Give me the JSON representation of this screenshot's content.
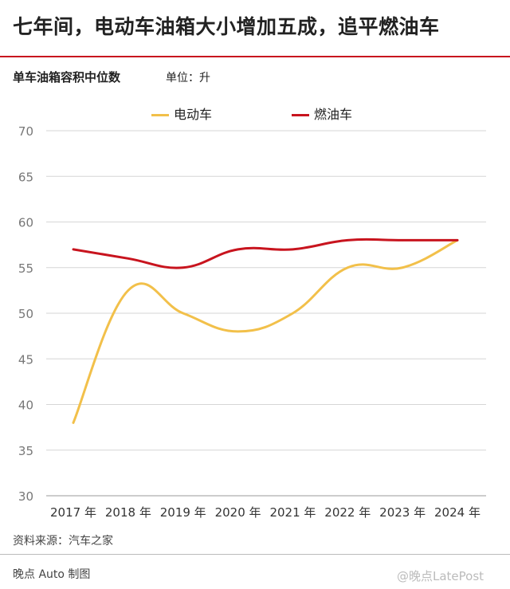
{
  "header": {
    "title": "七年间，电动车油箱大小增加五成，追平燃油车",
    "subtitle": "单车油箱容积中位数",
    "unit": "单位：升"
  },
  "footer": {
    "source": "资料来源：汽车之家",
    "credit": "晚点 Auto 制图",
    "watermark": "@晚点LatePost"
  },
  "colors": {
    "ev": "#f2c04a",
    "ice": "#c8141e",
    "accent_rule": "#c8141e",
    "grid": "#d6d6d6"
  },
  "chart_data": {
    "type": "line",
    "categories": [
      "2017 年",
      "2018 年",
      "2019 年",
      "2020 年",
      "2021 年",
      "2022 年",
      "2023 年",
      "2024 年"
    ],
    "series": [
      {
        "name": "电动车",
        "color": "#f2c04a",
        "values": [
          38,
          52.5,
          50,
          48,
          50,
          55,
          55,
          58
        ]
      },
      {
        "name": "燃油车",
        "color": "#c8141e",
        "values": [
          57,
          56,
          55,
          57,
          57,
          58,
          58,
          58
        ]
      }
    ],
    "ylim": [
      30,
      70
    ],
    "yticks": [
      "30",
      "35",
      "40",
      "45",
      "50",
      "55",
      "60",
      "65",
      "70"
    ],
    "grid": true,
    "legend": "top-center"
  }
}
